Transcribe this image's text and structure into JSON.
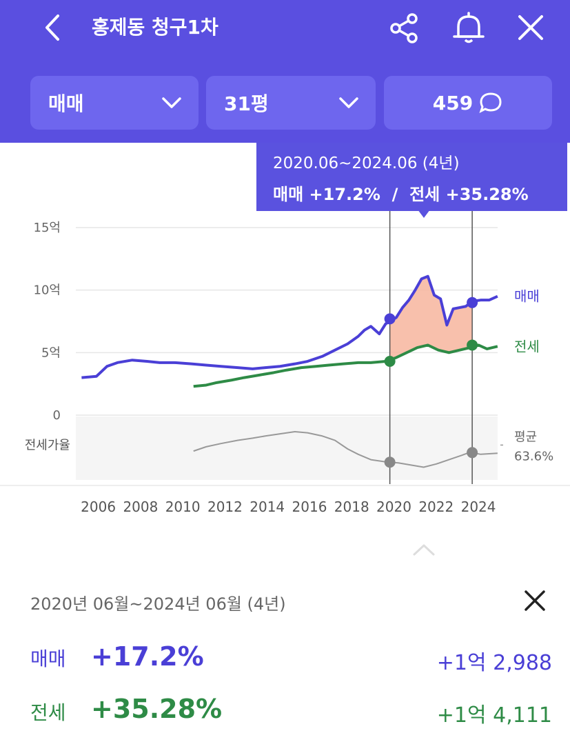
{
  "header": {
    "title": "홍제동 청구1차",
    "deal_type": "매매",
    "size": "31평",
    "comment_count": "459",
    "icons": [
      "back-arrow-icon",
      "share-icon",
      "bell-icon",
      "close-icon",
      "chevron-down-icon",
      "speech-bubble-icon"
    ]
  },
  "tooltip": {
    "range": "2020.06~2024.06 (4년)",
    "summary": "매매 +17.2%  /  전세 +35.28%"
  },
  "chart_data": {
    "type": "line",
    "y_ticks": [
      "15억",
      "10억",
      "5억",
      "0"
    ],
    "ylim": [
      0,
      15
    ],
    "unit": "억",
    "x_ticks": [
      "2006",
      "2008",
      "2010",
      "2012",
      "2014",
      "2016",
      "2018",
      "2020",
      "2022",
      "2024"
    ],
    "series": [
      {
        "name": "매매",
        "color": "#4a3fd6",
        "x": [
          2005.6,
          2006.3,
          2006.8,
          2007.3,
          2008.0,
          2008.7,
          2009.3,
          2010.0,
          2010.8,
          2011.5,
          2012.2,
          2013.0,
          2013.7,
          2014.3,
          2015.0,
          2015.7,
          2016.3,
          2017.0,
          2017.6,
          2018.2,
          2018.7,
          2019.0,
          2019.3,
          2019.7,
          2020.0,
          2020.5,
          2020.8,
          2021.1,
          2021.4,
          2021.7,
          2022.0,
          2022.3,
          2022.6,
          2022.9,
          2023.2,
          2023.5,
          2023.8,
          2024.1,
          2024.5,
          2024.9,
          2025.3
        ],
        "values": [
          3.0,
          3.1,
          3.9,
          4.2,
          4.4,
          4.3,
          4.2,
          4.2,
          4.1,
          4.0,
          3.9,
          3.8,
          3.7,
          3.8,
          3.9,
          4.1,
          4.3,
          4.7,
          5.2,
          5.7,
          6.3,
          6.8,
          7.1,
          6.5,
          7.3,
          7.8,
          8.6,
          9.2,
          10.0,
          10.9,
          11.1,
          9.6,
          9.3,
          7.2,
          8.5,
          8.6,
          8.7,
          9.1,
          9.2,
          9.2,
          9.5
        ]
      },
      {
        "name": "전세",
        "color": "#2e8b46",
        "x": [
          2010.9,
          2011.5,
          2012.0,
          2012.7,
          2013.3,
          2014.0,
          2014.7,
          2015.3,
          2016.0,
          2016.7,
          2017.3,
          2018.0,
          2018.7,
          2019.3,
          2020.0,
          2020.5,
          2021.0,
          2021.5,
          2022.0,
          2022.5,
          2023.0,
          2023.5,
          2024.0,
          2024.4,
          2024.8,
          2025.3
        ],
        "values": [
          2.3,
          2.4,
          2.6,
          2.8,
          3.0,
          3.2,
          3.4,
          3.6,
          3.8,
          3.9,
          4.0,
          4.1,
          4.2,
          4.2,
          4.3,
          4.6,
          5.0,
          5.4,
          5.6,
          5.2,
          5.0,
          5.2,
          5.4,
          5.6,
          5.3,
          5.5
        ]
      },
      {
        "name": "전세가율",
        "color": "#999999",
        "x": [
          2010.9,
          2011.5,
          2012.2,
          2013.0,
          2013.7,
          2014.3,
          2015.0,
          2015.7,
          2016.3,
          2017.0,
          2017.6,
          2018.2,
          2018.7,
          2019.3,
          2020.0,
          2020.6,
          2021.2,
          2021.8,
          2022.4,
          2023.0,
          2023.6,
          2024.0,
          2024.5,
          2025.3
        ],
        "values": [
          58,
          62,
          65,
          68,
          70,
          72,
          74,
          76,
          75,
          72,
          68,
          60,
          55,
          50,
          48,
          47,
          45,
          43,
          46,
          50,
          54,
          57,
          55,
          56
        ]
      }
    ],
    "highlight_range": [
      "2020.06",
      "2024.06"
    ],
    "markers": [
      {
        "series": "매매",
        "x": 2020.2,
        "value": 7.7
      },
      {
        "series": "매매",
        "x": 2024.1,
        "value": 9.0
      },
      {
        "series": "전세",
        "x": 2020.2,
        "value": 4.3
      },
      {
        "series": "전세",
        "x": 2024.1,
        "value": 5.6
      }
    ],
    "series_labels": [
      "매매",
      "전세"
    ],
    "ratio_label": "전세가율",
    "avg_label": "평균",
    "avg_value": "63.6%"
  },
  "panel": {
    "range": "2020년 06월~2024년 06월 (4년)",
    "rows": [
      {
        "label": "매매",
        "pct": "+17.2%",
        "amount": "+1억 2,988",
        "color": "#4a3fd6"
      },
      {
        "label": "전세",
        "pct": "+35.28%",
        "amount": "+1억 4,111",
        "color": "#2e8b46"
      }
    ]
  }
}
